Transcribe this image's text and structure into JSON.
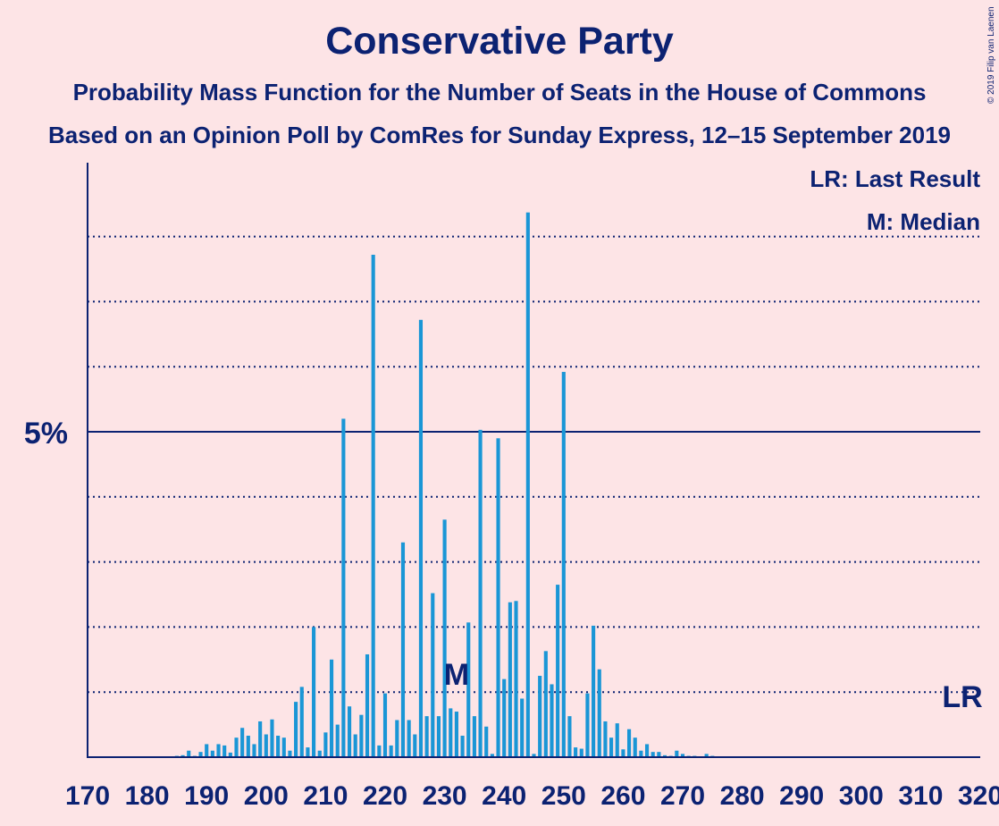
{
  "chart_data": {
    "type": "bar",
    "title": "Conservative Party",
    "subtitle": "Probability Mass Function for the Number of Seats in the House of Commons",
    "subtitle2": "Based on an Opinion Poll by ComRes for Sunday Express, 12–15 September 2019",
    "copyright": "© 2019 Filip van Laenen",
    "legend": [
      "LR: Last Result",
      "M: Median"
    ],
    "xlim": [
      170,
      320
    ],
    "ylim": [
      0,
      9
    ],
    "x_ticks": [
      170,
      180,
      190,
      200,
      210,
      220,
      230,
      240,
      250,
      260,
      270,
      280,
      290,
      300,
      310,
      320
    ],
    "y_major_tick": {
      "value": 5,
      "label": "5%"
    },
    "y_dotted_lines": [
      1,
      2,
      3,
      4,
      6,
      7,
      8
    ],
    "median": {
      "x": 232,
      "label": "M"
    },
    "last_result": {
      "x": 317,
      "label": "LR"
    },
    "bars": [
      {
        "x": 185,
        "y": 0.02
      },
      {
        "x": 186,
        "y": 0.03
      },
      {
        "x": 187,
        "y": 0.1
      },
      {
        "x": 188,
        "y": 0.02
      },
      {
        "x": 189,
        "y": 0.08
      },
      {
        "x": 190,
        "y": 0.2
      },
      {
        "x": 191,
        "y": 0.1
      },
      {
        "x": 192,
        "y": 0.2
      },
      {
        "x": 193,
        "y": 0.18
      },
      {
        "x": 194,
        "y": 0.07
      },
      {
        "x": 195,
        "y": 0.3
      },
      {
        "x": 196,
        "y": 0.45
      },
      {
        "x": 197,
        "y": 0.33
      },
      {
        "x": 198,
        "y": 0.2
      },
      {
        "x": 199,
        "y": 0.55
      },
      {
        "x": 200,
        "y": 0.35
      },
      {
        "x": 201,
        "y": 0.58
      },
      {
        "x": 202,
        "y": 0.33
      },
      {
        "x": 203,
        "y": 0.3
      },
      {
        "x": 204,
        "y": 0.1
      },
      {
        "x": 205,
        "y": 0.85
      },
      {
        "x": 206,
        "y": 1.08
      },
      {
        "x": 207,
        "y": 0.15
      },
      {
        "x": 208,
        "y": 2.0
      },
      {
        "x": 209,
        "y": 0.1
      },
      {
        "x": 210,
        "y": 0.38
      },
      {
        "x": 211,
        "y": 1.5
      },
      {
        "x": 212,
        "y": 0.5
      },
      {
        "x": 213,
        "y": 5.2
      },
      {
        "x": 214,
        "y": 0.78
      },
      {
        "x": 215,
        "y": 0.35
      },
      {
        "x": 216,
        "y": 0.65
      },
      {
        "x": 217,
        "y": 1.58
      },
      {
        "x": 218,
        "y": 7.72
      },
      {
        "x": 219,
        "y": 0.18
      },
      {
        "x": 220,
        "y": 0.98
      },
      {
        "x": 221,
        "y": 0.18
      },
      {
        "x": 222,
        "y": 0.57
      },
      {
        "x": 223,
        "y": 3.3
      },
      {
        "x": 224,
        "y": 0.57
      },
      {
        "x": 225,
        "y": 0.35
      },
      {
        "x": 226,
        "y": 6.72
      },
      {
        "x": 227,
        "y": 0.63
      },
      {
        "x": 228,
        "y": 2.52
      },
      {
        "x": 229,
        "y": 0.63
      },
      {
        "x": 230,
        "y": 3.65
      },
      {
        "x": 231,
        "y": 0.75
      },
      {
        "x": 232,
        "y": 0.7
      },
      {
        "x": 233,
        "y": 0.33
      },
      {
        "x": 234,
        "y": 2.07
      },
      {
        "x": 235,
        "y": 0.63
      },
      {
        "x": 236,
        "y": 5.03
      },
      {
        "x": 237,
        "y": 0.47
      },
      {
        "x": 238,
        "y": 0.05
      },
      {
        "x": 239,
        "y": 4.9
      },
      {
        "x": 240,
        "y": 1.2
      },
      {
        "x": 241,
        "y": 2.38
      },
      {
        "x": 242,
        "y": 2.4
      },
      {
        "x": 243,
        "y": 0.9
      },
      {
        "x": 244,
        "y": 8.37
      },
      {
        "x": 245,
        "y": 0.05
      },
      {
        "x": 246,
        "y": 1.25
      },
      {
        "x": 247,
        "y": 1.63
      },
      {
        "x": 248,
        "y": 1.12
      },
      {
        "x": 249,
        "y": 2.65
      },
      {
        "x": 250,
        "y": 5.92
      },
      {
        "x": 251,
        "y": 0.63
      },
      {
        "x": 252,
        "y": 0.15
      },
      {
        "x": 253,
        "y": 0.13
      },
      {
        "x": 254,
        "y": 0.98
      },
      {
        "x": 255,
        "y": 2.02
      },
      {
        "x": 256,
        "y": 1.35
      },
      {
        "x": 257,
        "y": 0.55
      },
      {
        "x": 258,
        "y": 0.3
      },
      {
        "x": 259,
        "y": 0.52
      },
      {
        "x": 260,
        "y": 0.12
      },
      {
        "x": 261,
        "y": 0.43
      },
      {
        "x": 262,
        "y": 0.3
      },
      {
        "x": 263,
        "y": 0.1
      },
      {
        "x": 264,
        "y": 0.2
      },
      {
        "x": 265,
        "y": 0.08
      },
      {
        "x": 266,
        "y": 0.08
      },
      {
        "x": 267,
        "y": 0.03
      },
      {
        "x": 268,
        "y": 0.02
      },
      {
        "x": 269,
        "y": 0.1
      },
      {
        "x": 270,
        "y": 0.05
      },
      {
        "x": 271,
        "y": 0.02
      },
      {
        "x": 272,
        "y": 0.02
      },
      {
        "x": 273,
        "y": 0.01
      },
      {
        "x": 274,
        "y": 0.05
      },
      {
        "x": 275,
        "y": 0.02
      },
      {
        "x": 276,
        "y": 0.01
      }
    ]
  },
  "colors": {
    "background": "#fde4e6",
    "bar": "#1a96d6",
    "text": "#0c2272"
  }
}
